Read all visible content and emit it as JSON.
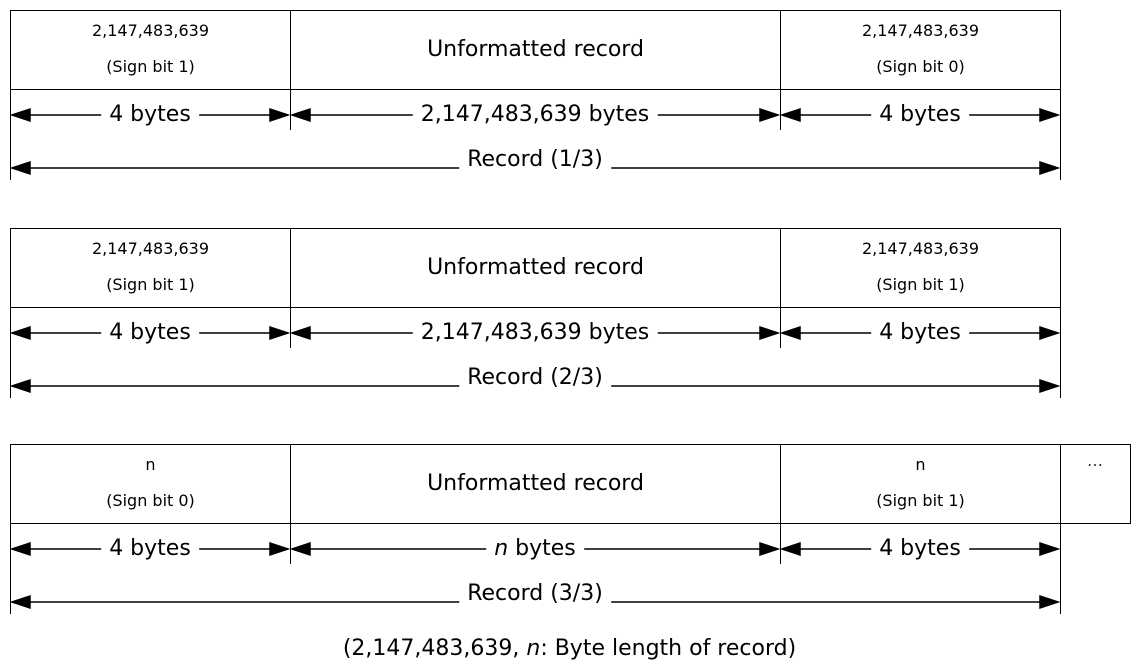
{
  "records": [
    {
      "header_value": "2,147,483,639",
      "header_sign": "(Sign bit 1)",
      "body_label": "Unformatted record",
      "trailer_value": "2,147,483,639",
      "trailer_sign": "(Sign bit 0)",
      "header_bytes": "4 bytes",
      "body_bytes": "2,147,483,639 bytes",
      "trailer_bytes": "4 bytes",
      "record_label": "Record (1/3)"
    },
    {
      "header_value": "2,147,483,639",
      "header_sign": "(Sign bit 1)",
      "body_label": "Unformatted record",
      "trailer_value": "2,147,483,639",
      "trailer_sign": "(Sign bit 1)",
      "header_bytes": "4 bytes",
      "body_bytes": "2,147,483,639 bytes",
      "trailer_bytes": "4 bytes",
      "record_label": "Record (2/3)"
    },
    {
      "header_value": "n",
      "header_sign": "(Sign bit 0)",
      "body_label": "Unformatted record",
      "trailer_value": "n",
      "trailer_sign": "(Sign bit 1)",
      "header_bytes": "4 bytes",
      "body_bytes_var": "n",
      "body_bytes_unit": " bytes",
      "trailer_bytes": "4 bytes",
      "record_label": "Record (3/3)"
    }
  ],
  "continuation": "…",
  "footnote": {
    "prefix": "(2,147,483,639, ",
    "var": "n",
    "suffix": ": Byte length of record)"
  }
}
